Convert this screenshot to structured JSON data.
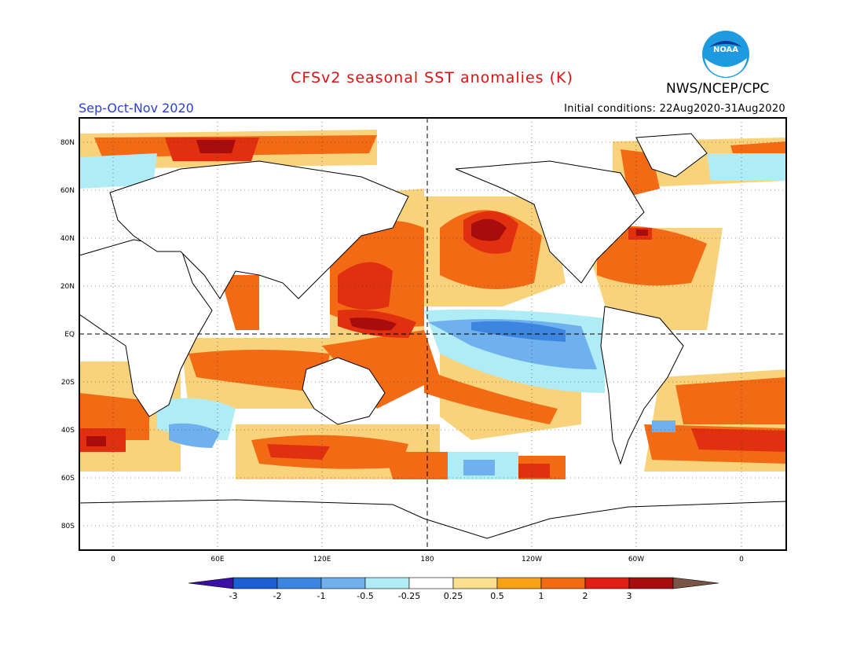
{
  "title": "CFSv2 seasonal SST anomalies (K)",
  "period": "Sep-Oct-Nov 2020",
  "agency": "NWS/NCEP/CPC",
  "initial_conditions": "Initial conditions: 22Aug2020-31Aug2020",
  "logo": {
    "text": "NOAA",
    "icon": "noaa-logo-icon"
  },
  "map": {
    "latitude_labels": [
      "80N",
      "60N",
      "40N",
      "20N",
      "EQ",
      "20S",
      "40S",
      "60S",
      "80S"
    ],
    "longitude_labels": [
      "0",
      "60E",
      "120E",
      "180",
      "120W",
      "60W",
      "0"
    ],
    "reference_lines": [
      "equator-dashed",
      "dateline-dashed"
    ]
  },
  "colorbar": {
    "labels": [
      "-3",
      "-2",
      "-1",
      "-0.5",
      "-0.25",
      "0.25",
      "0.5",
      "1",
      "2",
      "3"
    ],
    "colors": [
      "#3a10a6",
      "#1c5fd0",
      "#3d86e0",
      "#6fb0ee",
      "#b0ecf6",
      "#ffffff",
      "#fae08c",
      "#f5a214",
      "#f26a14",
      "#e02014",
      "#a80c0c",
      "#7a5545"
    ]
  },
  "anomaly_colors": {
    "strong_warm": "#b80f0f",
    "warm": "#e03010",
    "moderate_warm": "#f26a14",
    "mild_warm": "#f9d37c",
    "mild_cool": "#b0ecf6",
    "cool": "#6fb0ee",
    "strong_cool": "#3d86e0",
    "land": "#ffffff"
  }
}
